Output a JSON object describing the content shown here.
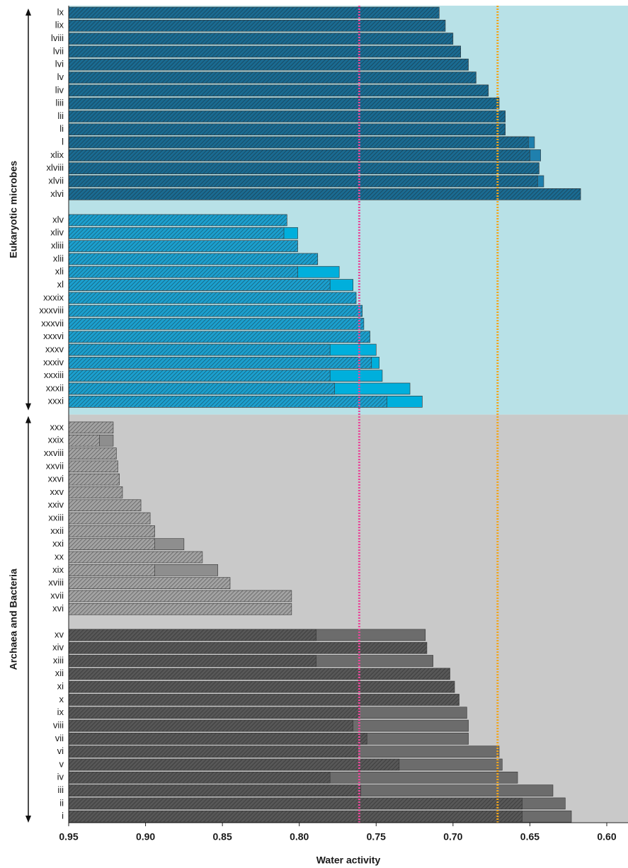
{
  "chart_data": {
    "type": "bar",
    "orientation": "horizontal",
    "x_label": "Water activity",
    "xlim": [
      0.95,
      0.586
    ],
    "xticks": [
      0.95,
      {
        "value": 0.9,
        "label": "0.90"
      },
      0.85,
      {
        "value": 0.8,
        "label": "0.80"
      },
      0.75,
      {
        "value": 0.7,
        "label": "0.70"
      },
      0.65,
      {
        "value": 0.6,
        "label": "0.60"
      }
    ],
    "reference_lines": [
      {
        "value": 0.761,
        "color": "#e8489a"
      },
      {
        "value": 0.671,
        "color": "#f2a51c"
      }
    ],
    "groups": [
      {
        "label": "Eukaryotic microbes",
        "background": "#b8e1e7",
        "blocks": [
          {
            "color": "#1a6b92",
            "solid_color": "#1f80ae",
            "categories": [
              "lx",
              "lix",
              "lviii",
              "lvii",
              "lvi",
              "lv",
              "liv",
              "liii",
              "lii",
              "li",
              "l",
              "xlix",
              "xlviii",
              "xlvii",
              "xlvi"
            ],
            "hatched": [
              0.709,
              0.705,
              0.7,
              0.695,
              0.69,
              0.685,
              0.677,
              0.67,
              0.666,
              0.666,
              0.651,
              0.65,
              0.644,
              0.645,
              0.617
            ],
            "solid": [
              null,
              null,
              null,
              null,
              null,
              null,
              null,
              null,
              null,
              null,
              0.647,
              0.643,
              null,
              0.641,
              null
            ]
          },
          {
            "color": "#1ba0cf",
            "solid_color": "#00afdc",
            "categories": [
              "xlv",
              "xliv",
              "xliii",
              "xlii",
              "xli",
              "xl",
              "xxxix",
              "xxxviii",
              "xxxvii",
              "xxxvi",
              "xxxv",
              "xxxiv",
              "xxxiii",
              "xxxii",
              "xxxi"
            ],
            "hatched": [
              0.808,
              0.81,
              0.801,
              0.788,
              0.801,
              0.78,
              0.763,
              0.759,
              0.758,
              0.754,
              0.78,
              0.753,
              0.78,
              0.777,
              0.743
            ],
            "solid": [
              null,
              0.801,
              null,
              null,
              0.774,
              0.765,
              null,
              null,
              null,
              null,
              0.75,
              0.748,
              0.746,
              0.728,
              0.72
            ]
          }
        ]
      },
      {
        "label": "Archaea and Bacteria",
        "background": "#c9c9c9",
        "blocks": [
          {
            "color": "#a3a3a3",
            "solid_color": "#8e8e8e",
            "categories": [
              "xxx",
              "xxix",
              "xxviii",
              "xxvii",
              "xxvi",
              "xxv",
              "xxiv",
              "xxiii",
              "xxii",
              "xxi",
              "xx",
              "xix",
              "xviii",
              "xvii",
              "xvi"
            ],
            "hatched": [
              0.921,
              0.93,
              0.919,
              0.918,
              0.917,
              0.915,
              0.903,
              0.897,
              0.894,
              0.894,
              0.863,
              0.894,
              0.845,
              0.805,
              0.805
            ],
            "solid": [
              null,
              0.921,
              null,
              null,
              null,
              null,
              null,
              null,
              null,
              0.875,
              null,
              0.853,
              null,
              null,
              null
            ]
          },
          {
            "color": "#575757",
            "solid_color": "#6c6c6c",
            "categories": [
              "xv",
              "xiv",
              "xiii",
              "xii",
              "xi",
              "x",
              "ix",
              "viii",
              "vii",
              "vi",
              "v",
              "iv",
              "iii",
              "ii",
              "i"
            ],
            "hatched": [
              0.789,
              0.717,
              0.789,
              0.702,
              0.699,
              0.696,
              0.761,
              0.765,
              0.756,
              0.762,
              0.735,
              0.78,
              0.76,
              0.655,
              0.655
            ],
            "solid": [
              0.718,
              null,
              0.713,
              null,
              null,
              null,
              0.691,
              0.69,
              0.69,
              0.67,
              0.668,
              0.658,
              0.635,
              0.627,
              0.623
            ]
          }
        ]
      }
    ]
  }
}
